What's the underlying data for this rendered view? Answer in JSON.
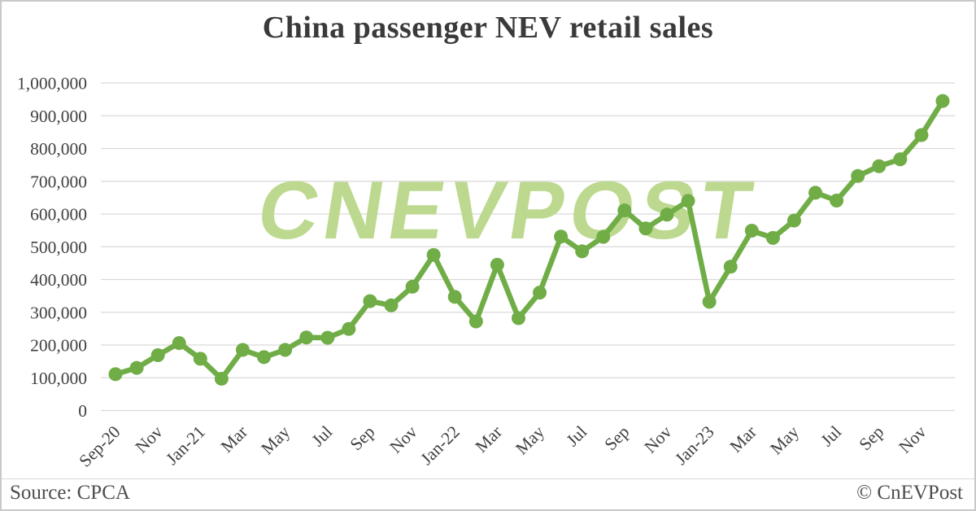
{
  "title": "China passenger NEV retail sales",
  "watermark": "CNEVPOST",
  "footer": {
    "source": "Source: CPCA",
    "copyright": "© CnEVPost"
  },
  "colors": {
    "line": "#70ad47",
    "marker": "#70ad47",
    "watermark": "#bcd98f",
    "gridline": "#d9d9d9",
    "axis_text": "#404040",
    "title_text": "#3a3a3a",
    "footer_text": "#4d4d4d"
  },
  "chart_data": {
    "type": "line",
    "title": "China passenger NEV retail sales",
    "series_name": "China passenger NEV retail sales",
    "source": "CPCA",
    "x": [
      "Sep-20",
      "Oct-20",
      "Nov-20",
      "Dec-20",
      "Jan-21",
      "Feb-21",
      "Mar-21",
      "Apr-21",
      "May-21",
      "Jun-21",
      "Jul-21",
      "Aug-21",
      "Sep-21",
      "Oct-21",
      "Nov-21",
      "Dec-21",
      "Jan-22",
      "Feb-22",
      "Mar-22",
      "Apr-22",
      "May-22",
      "Jun-22",
      "Jul-22",
      "Aug-22",
      "Sep-22",
      "Oct-22",
      "Nov-22",
      "Dec-22",
      "Jan-23",
      "Feb-23",
      "Mar-23",
      "Apr-23",
      "May-23",
      "Jun-23",
      "Jul-23",
      "Aug-23",
      "Sep-23",
      "Oct-23",
      "Nov-23",
      "Dec-23"
    ],
    "values": [
      111000,
      130000,
      169000,
      206000,
      158000,
      97000,
      185000,
      163000,
      185000,
      223000,
      222000,
      249000,
      334000,
      321000,
      378000,
      475000,
      347000,
      272000,
      445000,
      282000,
      360000,
      531000,
      486000,
      530000,
      611000,
      556000,
      598000,
      640000,
      332000,
      439000,
      549000,
      527000,
      580000,
      665000,
      641000,
      716000,
      746000,
      767000,
      841000,
      945000
    ],
    "x_tick_labels": [
      "Sep-20",
      "Nov",
      "Jan-21",
      "Mar",
      "May",
      "Jul",
      "Sep",
      "Nov",
      "Jan-22",
      "Mar",
      "May",
      "Jul",
      "Sep",
      "Nov",
      "Jan-23",
      "Mar",
      "May",
      "Jul",
      "Sep",
      "Nov"
    ],
    "x_tick_every": 2,
    "y_ticks": [
      0,
      100000,
      200000,
      300000,
      400000,
      500000,
      600000,
      700000,
      800000,
      900000,
      1000000
    ],
    "y_tick_labels": [
      "0",
      "100,000",
      "200,000",
      "300,000",
      "400,000",
      "500,000",
      "600,000",
      "700,000",
      "800,000",
      "900,000",
      "1,000,000"
    ],
    "ylim": [
      0,
      1000000
    ],
    "grid": "horizontal",
    "legend": "none"
  }
}
